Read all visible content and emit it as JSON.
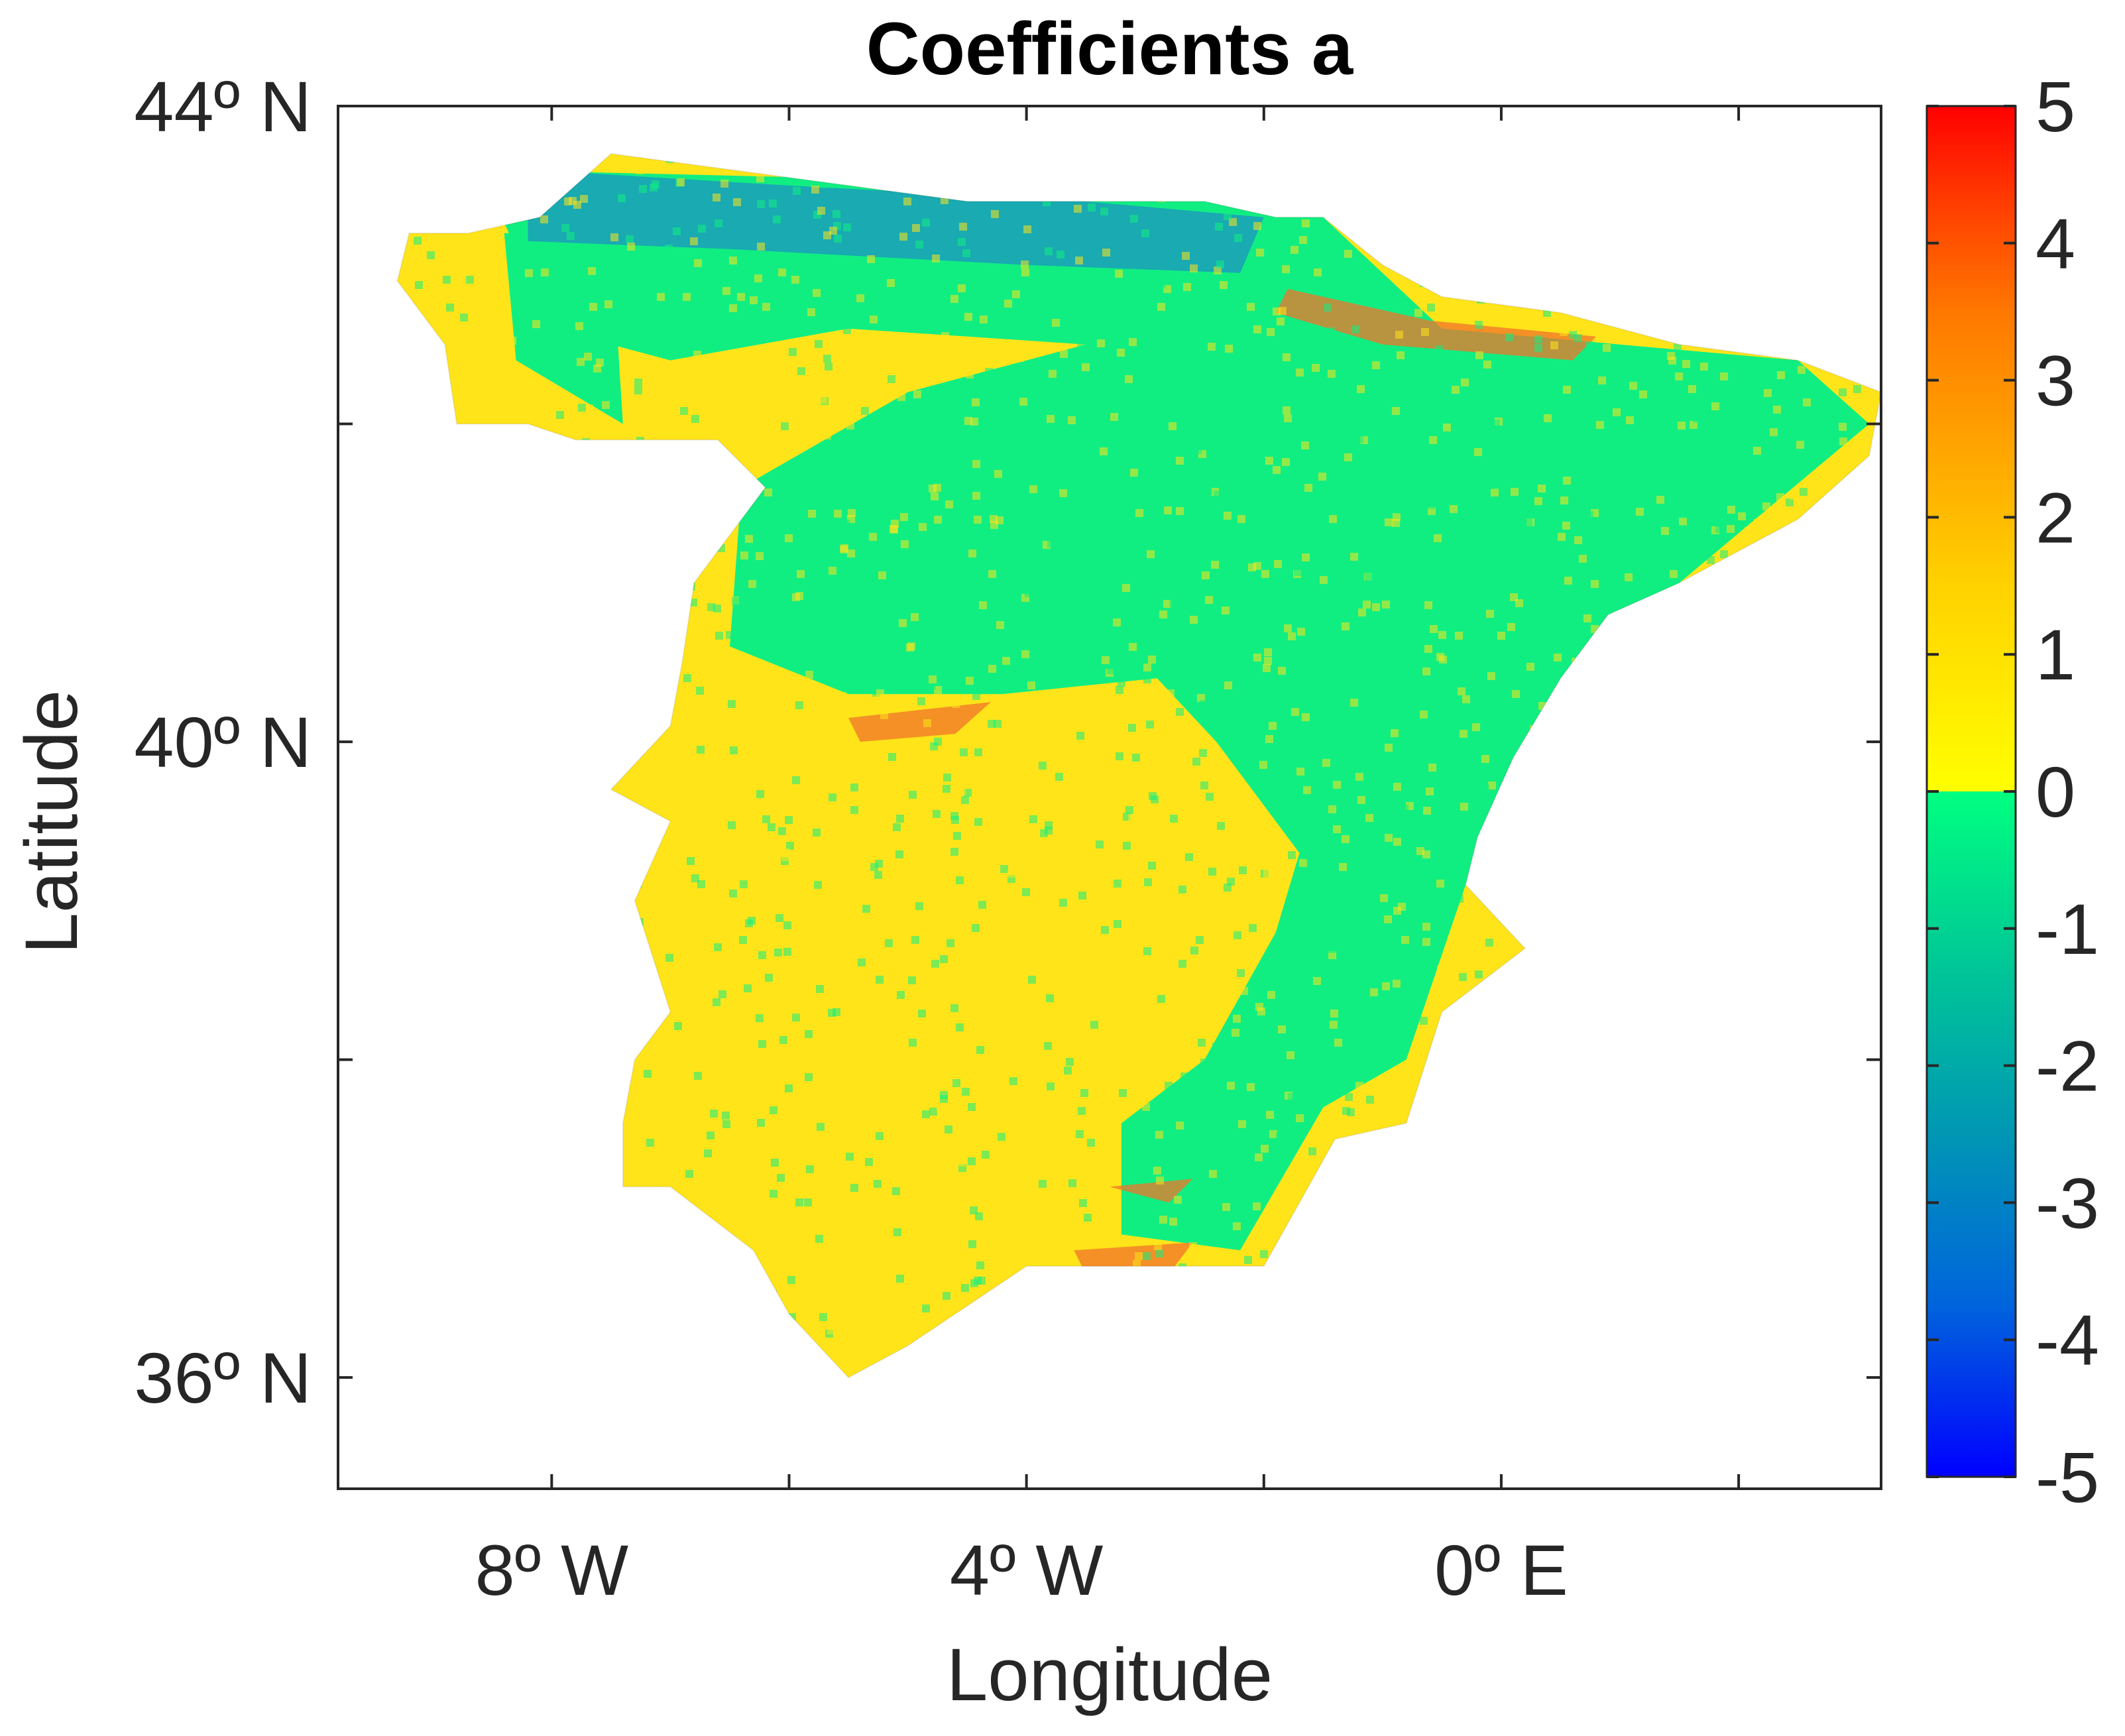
{
  "title": "Coefficients a",
  "xlabel": "Longitude",
  "ylabel": "Latitude",
  "colors": {
    "positive": [
      "#FFFF00",
      "#FFD200",
      "#FFA500",
      "#FF7800",
      "#FF3C00",
      "#FF0000"
    ],
    "negative": [
      "#00FF80",
      "#00C896",
      "#0096B4",
      "#0064DC",
      "#0000FF"
    ],
    "land_positive": "#FFE41A",
    "land_negative": "#10EE82",
    "land_north_coast": "#1B9DBB",
    "hotspot": "#F0742A",
    "axis": "#262626"
  },
  "chart_data": {
    "type": "heatmap",
    "title": "Coefficients a",
    "xlabel": "Longitude",
    "ylabel": "Latitude",
    "xlim": [
      -9.8,
      3.2
    ],
    "ylim": [
      35.3,
      44
    ],
    "x_ticks": [
      {
        "value": -8,
        "label": "8º W"
      },
      {
        "value": -6,
        "label": ""
      },
      {
        "value": -4,
        "label": "4º W"
      },
      {
        "value": -2,
        "label": ""
      },
      {
        "value": 0,
        "label": "0º E"
      },
      {
        "value": 2,
        "label": ""
      }
    ],
    "y_ticks": [
      {
        "value": 44,
        "label": "44º N"
      },
      {
        "value": 42,
        "label": ""
      },
      {
        "value": 40,
        "label": "40º N"
      },
      {
        "value": 38,
        "label": ""
      },
      {
        "value": 36,
        "label": "36º N"
      }
    ],
    "colorbar": {
      "range": [
        -5,
        5
      ],
      "ticks": [
        "5",
        "4",
        "3",
        "2",
        "1",
        "0",
        "-1",
        "-2",
        "-3",
        "-4",
        "-5"
      ]
    },
    "regions": {
      "outline": [
        [
          -8.7,
          43.2
        ],
        [
          -8.1,
          43.3
        ],
        [
          -7.5,
          43.7
        ],
        [
          -6.5,
          43.6
        ],
        [
          -5.5,
          43.5
        ],
        [
          -4.5,
          43.4
        ],
        [
          -3.5,
          43.4
        ],
        [
          -2.5,
          43.4
        ],
        [
          -1.9,
          43.3
        ],
        [
          -1.5,
          43.3
        ],
        [
          -1.0,
          43.0
        ],
        [
          -0.5,
          42.8
        ],
        [
          0.5,
          42.7
        ],
        [
          1.5,
          42.5
        ],
        [
          2.5,
          42.4
        ],
        [
          3.2,
          42.2
        ],
        [
          3.1,
          41.8
        ],
        [
          2.5,
          41.4
        ],
        [
          1.5,
          41.0
        ],
        [
          0.9,
          40.8
        ],
        [
          0.5,
          40.4
        ],
        [
          0.1,
          39.9
        ],
        [
          -0.2,
          39.4
        ],
        [
          -0.3,
          39.1
        ],
        [
          0.2,
          38.7
        ],
        [
          -0.5,
          38.3
        ],
        [
          -0.8,
          37.6
        ],
        [
          -1.4,
          37.5
        ],
        [
          -2.0,
          36.7
        ],
        [
          -3.0,
          36.7
        ],
        [
          -4.0,
          36.7
        ],
        [
          -5.0,
          36.2
        ],
        [
          -5.5,
          36.0
        ],
        [
          -6.0,
          36.4
        ],
        [
          -6.3,
          36.8
        ],
        [
          -7.0,
          37.2
        ],
        [
          -7.4,
          37.2
        ],
        [
          -7.4,
          37.6
        ],
        [
          -7.3,
          38.0
        ],
        [
          -7.0,
          38.3
        ],
        [
          -7.3,
          39.0
        ],
        [
          -7.0,
          39.5
        ],
        [
          -7.5,
          39.7
        ],
        [
          -7.0,
          40.1
        ],
        [
          -6.9,
          40.5
        ],
        [
          -6.8,
          41.0
        ],
        [
          -6.2,
          41.6
        ],
        [
          -6.6,
          41.9
        ],
        [
          -7.0,
          41.9
        ],
        [
          -7.8,
          41.9
        ],
        [
          -8.2,
          42.0
        ],
        [
          -8.8,
          42.0
        ],
        [
          -8.9,
          42.5
        ],
        [
          -9.3,
          42.9
        ],
        [
          -9.2,
          43.2
        ],
        [
          -8.7,
          43.2
        ]
      ],
      "negative_zones": [
        [
          [
            -8.6,
            43.6
          ],
          [
            -3.0,
            43.5
          ],
          [
            -1.5,
            43.3
          ],
          [
            -0.5,
            42.6
          ],
          [
            1.0,
            42.5
          ],
          [
            2.5,
            42.4
          ],
          [
            3.1,
            42.0
          ],
          [
            1.5,
            41.0
          ],
          [
            0.5,
            40.4
          ],
          [
            -0.2,
            39.4
          ],
          [
            -0.3,
            39.1
          ],
          [
            -0.8,
            38.0
          ],
          [
            -1.5,
            37.7
          ],
          [
            -2.2,
            36.8
          ],
          [
            -3.2,
            36.9
          ],
          [
            -3.2,
            37.6
          ],
          [
            -2.5,
            38.0
          ],
          [
            -1.9,
            38.8
          ],
          [
            -1.7,
            39.3
          ],
          [
            -2.4,
            40.0
          ],
          [
            -2.9,
            40.4
          ],
          [
            -4.2,
            40.3
          ],
          [
            -5.5,
            40.3
          ],
          [
            -6.5,
            40.6
          ],
          [
            -6.4,
            41.6
          ],
          [
            -5.0,
            42.2
          ],
          [
            -3.5,
            42.5
          ],
          [
            -5.5,
            42.6
          ],
          [
            -7.0,
            42.4
          ],
          [
            -8.0,
            42.6
          ],
          [
            -8.6,
            43.6
          ]
        ],
        [
          [
            -8.4,
            43.2
          ],
          [
            -7.5,
            43.2
          ],
          [
            -7.4,
            42.0
          ],
          [
            -8.3,
            42.4
          ]
        ]
      ],
      "north_coast_zone": [
        [
          -8.2,
          43.6
        ],
        [
          -6.0,
          43.5
        ],
        [
          -3.5,
          43.4
        ],
        [
          -2.0,
          43.3
        ],
        [
          -2.2,
          42.95
        ],
        [
          -4.0,
          43.0
        ],
        [
          -6.5,
          43.1
        ],
        [
          -8.2,
          43.15
        ]
      ],
      "hotspots": [
        [
          [
            -5.5,
            40.15
          ],
          [
            -4.3,
            40.25
          ],
          [
            -4.6,
            40.05
          ],
          [
            -5.4,
            40.0
          ]
        ],
        [
          [
            -3.6,
            36.8
          ],
          [
            -2.6,
            36.85
          ],
          [
            -2.8,
            36.65
          ],
          [
            -3.5,
            36.65
          ]
        ],
        [
          [
            -1.8,
            42.85
          ],
          [
            -0.6,
            42.65
          ],
          [
            0.8,
            42.55
          ],
          [
            0.6,
            42.4
          ],
          [
            -1.0,
            42.5
          ],
          [
            -1.9,
            42.7
          ]
        ],
        [
          [
            -3.3,
            37.2
          ],
          [
            -2.6,
            37.25
          ],
          [
            -2.8,
            37.1
          ]
        ]
      ]
    }
  }
}
